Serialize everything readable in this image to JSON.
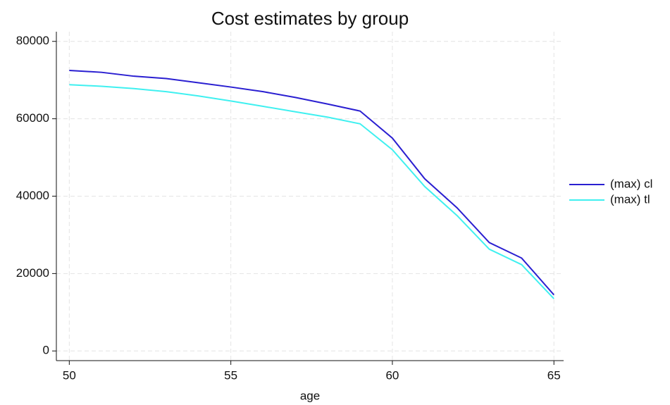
{
  "chart_data": {
    "type": "line",
    "title": "Cost estimates by group",
    "x_label": "age",
    "x": [
      50,
      51,
      52,
      53,
      54,
      55,
      56,
      57,
      58,
      59,
      60,
      61,
      62,
      63,
      64,
      65
    ],
    "series": [
      {
        "name": "(max) cl",
        "color": "#2a1fd1",
        "values": [
          72500,
          72000,
          71000,
          70400,
          69300,
          68200,
          67000,
          65500,
          63800,
          62000,
          55000,
          44500,
          37000,
          28000,
          24000,
          14500
        ]
      },
      {
        "name": "(max) tl",
        "color": "#3ff0f0",
        "values": [
          68800,
          68400,
          67800,
          67000,
          65900,
          64600,
          63200,
          61800,
          60400,
          58700,
          52000,
          42500,
          35000,
          26300,
          22300,
          13500
        ]
      }
    ],
    "xlim": [
      49.6,
      65.3
    ],
    "xticks": [
      50,
      55,
      60,
      65
    ],
    "ylim": [
      -2500,
      82500
    ],
    "yticks": [
      0,
      20000,
      40000,
      60000,
      80000
    ],
    "grid": true,
    "legend": "right"
  }
}
